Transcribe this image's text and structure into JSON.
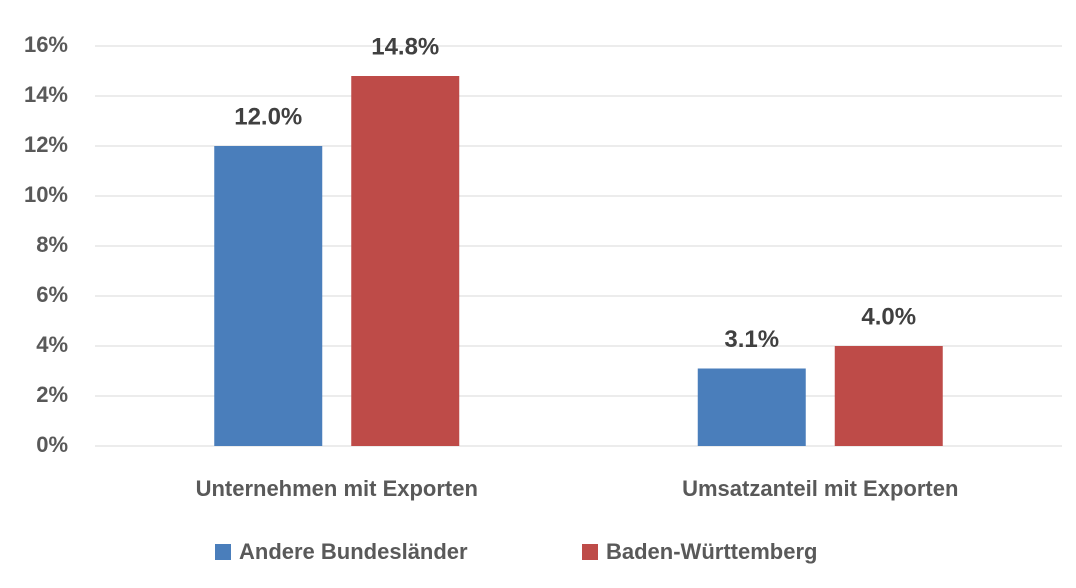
{
  "chart_data": {
    "type": "bar",
    "categories": [
      "Unternehmen mit Exporten",
      "Umsatzanteil mit Exporten"
    ],
    "series": [
      {
        "name": "Andere Bundesländer",
        "color": "#4a7ebb",
        "values": [
          12.0,
          3.1
        ],
        "value_labels": [
          "12.0%",
          "3.1%"
        ]
      },
      {
        "name": "Baden-Württemberg",
        "color": "#be4b48",
        "values": [
          14.8,
          4.0
        ],
        "value_labels": [
          "14.8%",
          "4.0%"
        ]
      }
    ],
    "ylim": [
      0,
      16
    ],
    "yticks": [
      {
        "value": 0,
        "label": "0%"
      },
      {
        "value": 2,
        "label": "2%"
      },
      {
        "value": 4,
        "label": "4%"
      },
      {
        "value": 6,
        "label": "6%"
      },
      {
        "value": 8,
        "label": "8%"
      },
      {
        "value": 10,
        "label": "10%"
      },
      {
        "value": 12,
        "label": "12%"
      },
      {
        "value": 14,
        "label": "14%"
      },
      {
        "value": 16,
        "label": "16%"
      }
    ],
    "grid": true,
    "legend": "bottom"
  }
}
